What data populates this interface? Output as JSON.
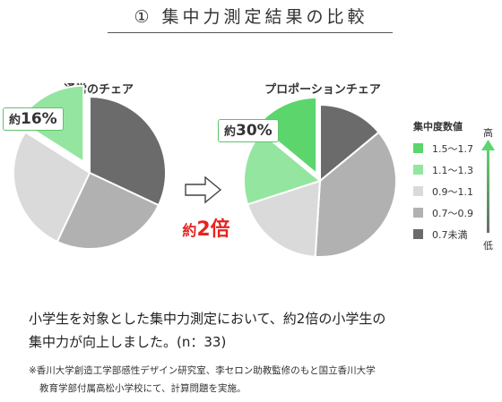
{
  "title": "① 集中力測定結果の比較",
  "colors": {
    "green_dark": "#5cd56d",
    "green_light": "#94e59f",
    "gray_light": "#dadada",
    "gray_mid": "#b1b1b1",
    "gray_dark": "#6b6b6b",
    "callout_border": "#5ec46a",
    "ratio_red": "#e52520"
  },
  "chart_data": [
    {
      "type": "pie",
      "title": "通常のチェア",
      "slices": [
        {
          "label": "0.7未満",
          "value": 32,
          "color": "#6b6b6b"
        },
        {
          "label": "0.7〜0.9",
          "value": 25,
          "color": "#b1b1b1"
        },
        {
          "label": "0.9〜1.1",
          "value": 27,
          "color": "#dadada"
        },
        {
          "label": "1.1〜1.3",
          "value": 16,
          "color": "#94e59f"
        }
      ],
      "callout": {
        "prefix": "約",
        "value": "16%"
      }
    },
    {
      "type": "pie",
      "title": "プロポーションチェア",
      "slices": [
        {
          "label": "0.7未満",
          "value": 14,
          "color": "#6b6b6b"
        },
        {
          "label": "0.7〜0.9",
          "value": 37,
          "color": "#b1b1b1"
        },
        {
          "label": "0.9〜1.1",
          "value": 19,
          "color": "#dadada"
        },
        {
          "label": "1.1〜1.3",
          "value": 16,
          "color": "#94e59f"
        },
        {
          "label": "1.5〜1.7",
          "value": 14,
          "color": "#5cd56d"
        }
      ],
      "callout": {
        "prefix": "約",
        "value": "30%"
      }
    }
  ],
  "comparison": {
    "prefix": "約",
    "value": "2倍"
  },
  "legend": {
    "title": "集中度数値",
    "items": [
      {
        "label": "1.5〜1.7",
        "color": "#5cd56d"
      },
      {
        "label": "1.1〜1.3",
        "color": "#94e59f"
      },
      {
        "label": "0.9〜1.1",
        "color": "#dadada"
      },
      {
        "label": "0.7〜0.9",
        "color": "#b1b1b1"
      },
      {
        "label": "0.7未満",
        "color": "#6b6b6b"
      }
    ],
    "high_label": "高",
    "low_label": "低"
  },
  "summary": {
    "line1": "小学生を対象とした集中力測定において、約2倍の小学生の",
    "line2": "集中力が向上しました。(n：33)"
  },
  "footnote": {
    "line1": "※香川大学創造工学部感性デザイン研究室、李セロン助教監修のもと国立香川大学",
    "line2": "教育学部付属高松小学校にて、計算問題を実施。"
  }
}
